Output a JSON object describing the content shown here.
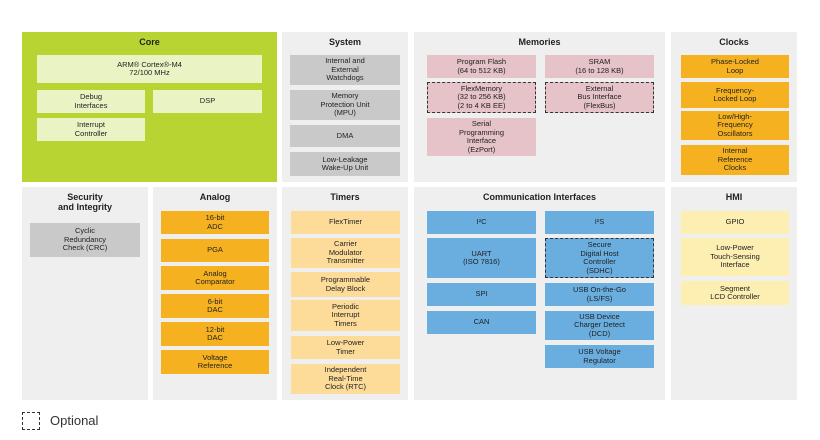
{
  "panels": [
    {
      "title": "Core",
      "boxes": [
        {
          "lines": [
            "ARM® Cortex®-M4",
            "72/100 MHz"
          ]
        },
        {
          "lines": [
            "Debug",
            "Interfaces"
          ]
        },
        {
          "lines": [
            "DSP"
          ]
        },
        {
          "lines": [
            "Interrupt",
            "Controller"
          ]
        }
      ]
    },
    {
      "title": "System",
      "boxes": [
        {
          "lines": [
            "Internal and",
            "External",
            "Watchdogs"
          ]
        },
        {
          "lines": [
            "Memory",
            "Protection Unit",
            "(MPU)"
          ]
        },
        {
          "lines": [
            "DMA"
          ]
        },
        {
          "lines": [
            "Low-Leakage",
            "Wake-Up Unit"
          ]
        }
      ]
    },
    {
      "title": "Memories",
      "boxes": [
        {
          "lines": [
            "Program Flash",
            "(64 to 512 KB)"
          ]
        },
        {
          "lines": [
            "SRAM",
            "(16 to 128 KB)"
          ]
        },
        {
          "lines": [
            "FlexMemory",
            "(32 to 256 KB)",
            "(2 to 4 KB EE)"
          ],
          "optional": true
        },
        {
          "lines": [
            "External",
            "Bus Interface",
            "(FlexBus)"
          ],
          "optional": true
        },
        {
          "lines": [
            "Serial",
            "Programming",
            "Interface",
            "(EzPort)"
          ]
        }
      ]
    },
    {
      "title": "Clocks",
      "boxes": [
        {
          "lines": [
            "Phase-Locked",
            "Loop"
          ]
        },
        {
          "lines": [
            "Frequency-",
            "Locked Loop"
          ]
        },
        {
          "lines": [
            "Low/High-",
            "Frequency",
            "Oscillators"
          ]
        },
        {
          "lines": [
            "Internal",
            "Reference",
            "Clocks"
          ]
        }
      ]
    },
    {
      "title": [
        "Security",
        "and Integrity"
      ],
      "boxes": [
        {
          "lines": [
            "Cyclic",
            "Redundancy",
            "Check (CRC)"
          ]
        }
      ]
    },
    {
      "title": "Analog",
      "boxes": [
        {
          "lines": [
            "16-bit",
            "ADC"
          ]
        },
        {
          "lines": [
            "PGA"
          ]
        },
        {
          "lines": [
            "Analog",
            "Comparator"
          ]
        },
        {
          "lines": [
            "6-bit",
            "DAC"
          ]
        },
        {
          "lines": [
            "12-bit",
            "DAC"
          ]
        },
        {
          "lines": [
            "Voltage",
            "Reference"
          ]
        }
      ]
    },
    {
      "title": "Timers",
      "boxes": [
        {
          "lines": [
            "FlexTimer"
          ]
        },
        {
          "lines": [
            "Carrier",
            "Modulator",
            "Transmitter"
          ]
        },
        {
          "lines": [
            "Programmable",
            "Delay Block"
          ]
        },
        {
          "lines": [
            "Periodic",
            "Interrupt",
            "Timers"
          ]
        },
        {
          "lines": [
            "Low-Power",
            "Timer"
          ]
        },
        {
          "lines": [
            "Independent",
            "Real-Time",
            "Clock (RTC)"
          ]
        }
      ]
    },
    {
      "title": "Communication Interfaces",
      "boxes": [
        {
          "lines": [
            "I²C"
          ]
        },
        {
          "lines": [
            "I²S"
          ]
        },
        {
          "lines": [
            "UART",
            "(ISO 7816)"
          ]
        },
        {
          "lines": [
            "Secure",
            "Digital Host",
            "Controller",
            "(SDHC)"
          ],
          "optional": true
        },
        {
          "lines": [
            "SPI"
          ]
        },
        {
          "lines": [
            "USB On-the-Go",
            "(LS/FS)"
          ]
        },
        {
          "lines": [
            "CAN"
          ]
        },
        {
          "lines": [
            "USB Device",
            "Charger Detect",
            "(DCD)"
          ]
        },
        {
          "lines": [
            "USB Voltage",
            "Regulator"
          ]
        }
      ]
    },
    {
      "title": "HMI",
      "boxes": [
        {
          "lines": [
            "GPIO"
          ]
        },
        {
          "lines": [
            "Low-Power",
            "Touch-Sensing",
            "Interface"
          ]
        },
        {
          "lines": [
            "Segment",
            "LCD Controller"
          ]
        }
      ]
    }
  ],
  "legend": "Optional"
}
